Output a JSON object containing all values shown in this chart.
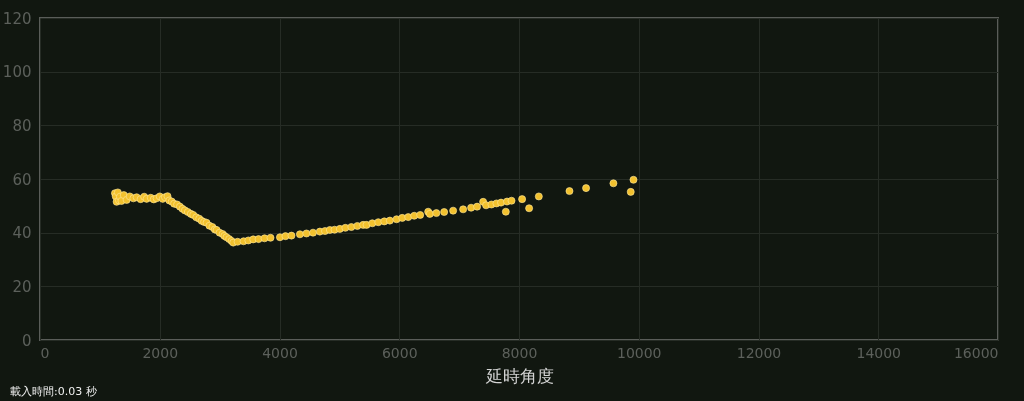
{
  "chart_data": {
    "type": "scatter",
    "xlabel": "延時角度",
    "annotations": [
      "載入時間:0.03 秒"
    ],
    "x": [
      1252,
      1265,
      1280,
      1300,
      1320,
      1336,
      1360,
      1400,
      1447,
      1500,
      1560,
      1614,
      1680,
      1740,
      1781,
      1850,
      1900,
      1948,
      2000,
      2050,
      2087,
      2130,
      2160,
      2200,
      2240,
      2290,
      2337,
      2380,
      2420,
      2470,
      2520,
      2560,
      2610,
      2660,
      2700,
      2740,
      2782,
      2830,
      2880,
      2920,
      2950,
      3000,
      3050,
      3080,
      3116,
      3160,
      3200,
      3227,
      3300,
      3400,
      3480,
      3561,
      3650,
      3750,
      3850,
      4007,
      4100,
      4200,
      4341,
      4450,
      4560,
      4674,
      4760,
      4841,
      4920,
      5008,
      5100,
      5200,
      5300,
      5397,
      5454,
      5550,
      5650,
      5750,
      5843,
      5955,
      6050,
      6150,
      6250,
      6350,
      6483,
      6511,
      6620,
      6750,
      6900,
      7067,
      7200,
      7300,
      7401,
      7450,
      7540,
      7624,
      7700,
      7780,
      7800,
      7875,
      8052,
      8169,
      8331,
      8843,
      9120,
      9577,
      9866,
      9912
    ],
    "series": [
      {
        "color": "#f2c12e",
        "values": [
          54.7,
          53.5,
          51.5,
          55.0,
          52.0,
          53.4,
          51.8,
          54.0,
          52.2,
          53.5,
          52.8,
          53.2,
          52.5,
          53.4,
          52.6,
          53.0,
          52.4,
          52.8,
          53.5,
          52.6,
          53.2,
          53.6,
          52.0,
          51.6,
          50.8,
          50.5,
          49.7,
          48.9,
          48.3,
          47.7,
          47.0,
          46.6,
          45.7,
          45.2,
          44.4,
          44.0,
          43.7,
          42.6,
          42.1,
          41.2,
          41.0,
          40.0,
          39.5,
          38.8,
          38.3,
          37.6,
          36.9,
          36.3,
          36.6,
          36.8,
          37.1,
          37.5,
          37.6,
          37.9,
          38.1,
          38.3,
          38.7,
          38.9,
          39.4,
          39.7,
          40.0,
          40.4,
          40.6,
          41.0,
          41.1,
          41.4,
          41.8,
          42.1,
          42.5,
          42.9,
          42.9,
          43.5,
          43.9,
          44.2,
          44.5,
          45.0,
          45.5,
          45.8,
          46.3,
          46.6,
          47.8,
          47.0,
          47.3,
          47.7,
          48.2,
          48.7,
          49.3,
          49.7,
          51.5,
          50.2,
          50.5,
          50.9,
          51.2,
          47.8,
          51.6,
          51.9,
          52.5,
          49.1,
          53.5,
          55.5,
          56.6,
          58.4,
          55.2,
          59.7
        ]
      }
    ],
    "xlim": [
      0,
      16000
    ],
    "ylim": [
      0,
      120
    ],
    "xticks": [
      0,
      2000,
      4000,
      6000,
      8000,
      10000,
      12000,
      14000,
      16000
    ],
    "yticks": [
      0,
      20,
      40,
      60,
      80,
      100,
      120
    ],
    "grid": true,
    "marker": "circle"
  }
}
